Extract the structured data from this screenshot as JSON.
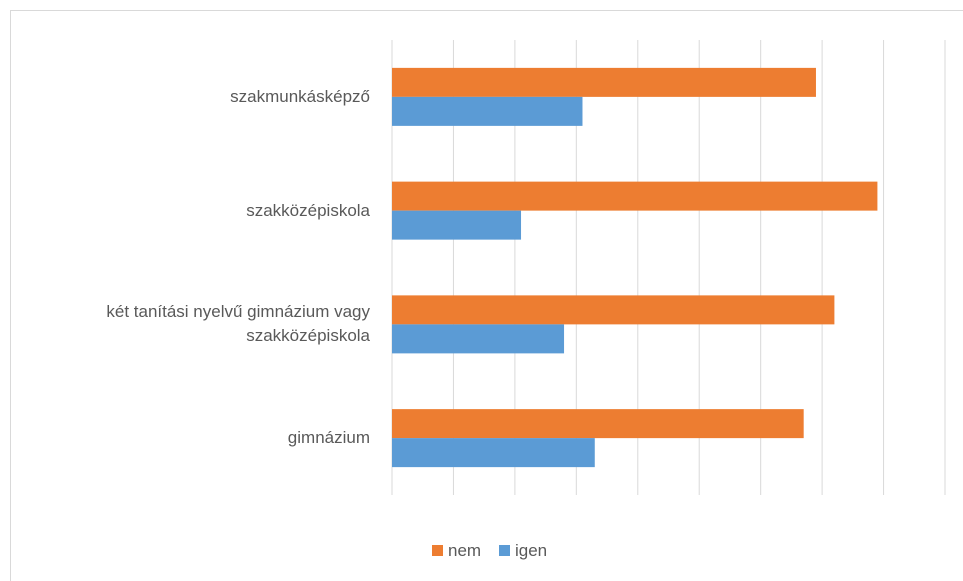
{
  "chart_data": {
    "type": "bar",
    "orientation": "horizontal",
    "categories": [
      "szakmunkásképző",
      "szakközépiskola",
      "két tanítási nyelvű gimnázium vagy szakközépiskola",
      "gimnázium"
    ],
    "series": [
      {
        "name": "nem",
        "color": "#ED7D31",
        "values": [
          69,
          79,
          72,
          67
        ]
      },
      {
        "name": "igen",
        "color": "#5B9BD5",
        "values": [
          31,
          21,
          28,
          33
        ]
      }
    ],
    "xlim": [
      0,
      90
    ],
    "xticks": [
      0,
      10,
      20,
      30,
      40,
      50,
      60,
      70,
      80,
      90
    ],
    "grid": true,
    "legend": "bottom"
  }
}
